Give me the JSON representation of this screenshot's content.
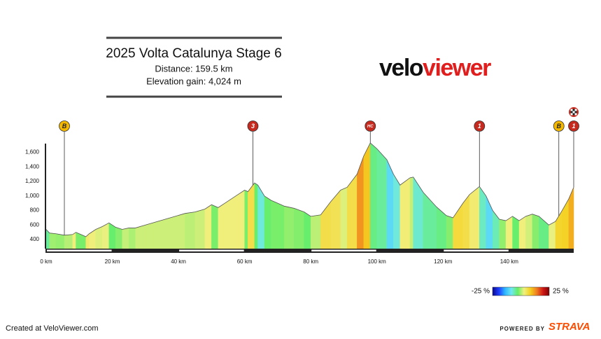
{
  "header": {
    "title": "2025 Volta Catalunya Stage 6",
    "distance": "Distance: 159.5 km",
    "elevation_gain": "Elevation gain: 4,024 m"
  },
  "logo": {
    "part1": "velo",
    "part2": "viewer"
  },
  "chart_data": {
    "type": "elevation-profile",
    "x": [
      0,
      1,
      3,
      5.5,
      8,
      9,
      10,
      12,
      13,
      15,
      17,
      19,
      20,
      21,
      23,
      25,
      27,
      30,
      33,
      36,
      39,
      42,
      45,
      48,
      50,
      52,
      54,
      56,
      58,
      60,
      61,
      63,
      64,
      66,
      68,
      70,
      72,
      75,
      78,
      80,
      83,
      86,
      89,
      91,
      94,
      96,
      98,
      100,
      103,
      105,
      107,
      110,
      111,
      114,
      118,
      121,
      123,
      126,
      128,
      131,
      133,
      135,
      137,
      139,
      141,
      143,
      145,
      147,
      149,
      151,
      152,
      154,
      156,
      158,
      159.5
    ],
    "y": [
      540,
      490,
      480,
      460,
      470,
      500,
      480,
      440,
      480,
      540,
      580,
      630,
      600,
      570,
      540,
      560,
      560,
      600,
      640,
      680,
      720,
      760,
      780,
      820,
      880,
      840,
      900,
      960,
      1020,
      1080,
      1060,
      1180,
      1150,
      1000,
      940,
      900,
      860,
      830,
      780,
      720,
      740,
      920,
      1080,
      1120,
      1300,
      1550,
      1730,
      1650,
      1500,
      1300,
      1150,
      1250,
      1260,
      1050,
      850,
      730,
      700,
      900,
      1020,
      1130,
      1000,
      800,
      680,
      660,
      720,
      660,
      720,
      750,
      720,
      640,
      600,
      650,
      800,
      960,
      1120
    ],
    "xlim": [
      0,
      159.5
    ],
    "ylim": [
      275,
      1750
    ],
    "xticks": [
      {
        "value": 0,
        "label": "0 km"
      },
      {
        "value": 20,
        "label": "20 km"
      },
      {
        "value": 40,
        "label": "40 km"
      },
      {
        "value": 60,
        "label": "60 km"
      },
      {
        "value": 80,
        "label": "80 km"
      },
      {
        "value": 100,
        "label": "100 km"
      },
      {
        "value": 120,
        "label": "120 km"
      },
      {
        "value": 140,
        "label": "140 km"
      }
    ],
    "yticks": [
      400,
      600,
      800,
      {
        "value": 1000,
        "label": "1,000"
      },
      {
        "value": 1200,
        "label": "1,200"
      },
      {
        "value": 1400,
        "label": "1,400"
      },
      {
        "value": 1600,
        "label": "1,600"
      }
    ],
    "colorscale": {
      "ticks": [
        {
          "value": -25,
          "label": "-25 %"
        },
        {
          "value": 25,
          "label": "25 %"
        }
      ],
      "colors": [
        "#0a0a8c",
        "#1f3cff",
        "#2fb8ff",
        "#6fe8f0",
        "#66ee66",
        "#f0f080",
        "#f5d020",
        "#f08020",
        "#d01818",
        "#800000"
      ]
    },
    "climbs": [
      {
        "x": 5.5,
        "label": "B",
        "color": "#f5b800"
      },
      {
        "x": 62.5,
        "label": "3",
        "color": "#c62a1e"
      },
      {
        "x": 98,
        "label": "HC",
        "color": "#c62a1e"
      },
      {
        "x": 131,
        "label": "1",
        "color": "#c62a1e"
      },
      {
        "x": 155,
        "label": "B",
        "color": "#f5b800"
      },
      {
        "x": 159.5,
        "label": "1",
        "color": "#c62a1e"
      }
    ]
  },
  "footer": {
    "created": "Created at VeloViewer.com",
    "powered": "POWERED BY",
    "brand": "STRAVA"
  }
}
